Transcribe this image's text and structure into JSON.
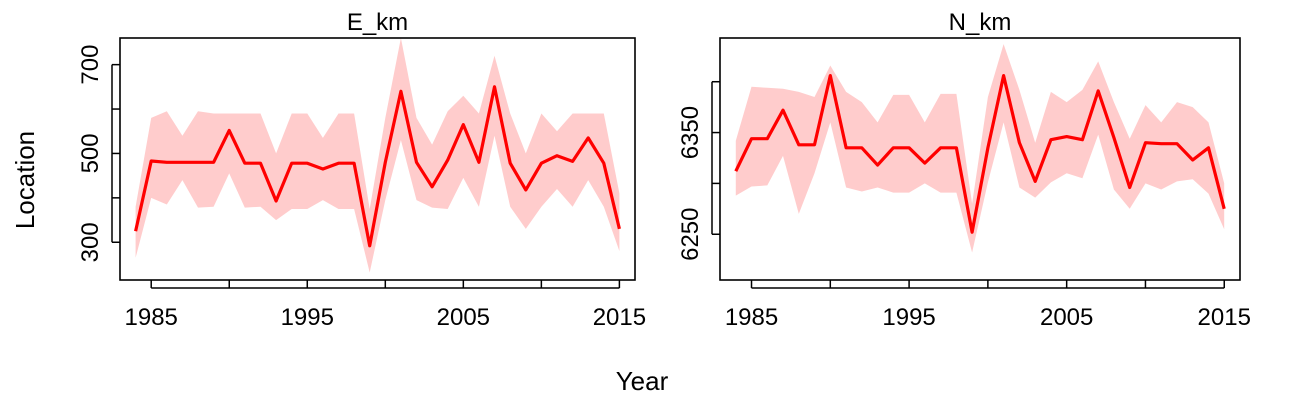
{
  "figure": {
    "xlabel": "Year",
    "ylabel": "Location",
    "line_color": "#ff0000",
    "band_color": "#ffcccc"
  },
  "chart_data": [
    {
      "type": "line",
      "title": "E_km",
      "xlabel": "Year",
      "ylabel": "Location",
      "xlim": [
        1983,
        2016
      ],
      "ylim": [
        215,
        760
      ],
      "xticks": [
        1985,
        1990,
        1995,
        2000,
        2005,
        2010,
        2015
      ],
      "xtick_labels": [
        "1985",
        "",
        "1995",
        "",
        "2005",
        "",
        "2015"
      ],
      "yticks": [
        300,
        400,
        500,
        600,
        700
      ],
      "ytick_labels": [
        "300",
        "",
        "500",
        "",
        "700"
      ],
      "grid": false,
      "legend": "none",
      "x": [
        1984,
        1985,
        1986,
        1987,
        1988,
        1989,
        1990,
        1991,
        1992,
        1993,
        1994,
        1995,
        1996,
        1997,
        1998,
        1999,
        2000,
        2001,
        2002,
        2003,
        2004,
        2005,
        2006,
        2007,
        2008,
        2009,
        2010,
        2011,
        2012,
        2013,
        2014,
        2015
      ],
      "series": [
        {
          "values": [
            325,
            483,
            480,
            480,
            480,
            480,
            552,
            478,
            478,
            393,
            478,
            478,
            465,
            478,
            478,
            292,
            480,
            640,
            480,
            425,
            485,
            565,
            480,
            650,
            478,
            418,
            478,
            495,
            482,
            535,
            478,
            330
          ],
          "lower": [
            265,
            400,
            385,
            440,
            378,
            380,
            455,
            378,
            380,
            350,
            375,
            375,
            395,
            375,
            375,
            232,
            395,
            530,
            395,
            378,
            375,
            445,
            380,
            540,
            380,
            330,
            380,
            420,
            380,
            440,
            380,
            280
          ],
          "upper": [
            380,
            580,
            595,
            540,
            595,
            590,
            590,
            590,
            590,
            500,
            590,
            590,
            535,
            590,
            590,
            375,
            580,
            760,
            580,
            520,
            595,
            630,
            590,
            720,
            590,
            500,
            590,
            550,
            590,
            590,
            590,
            410
          ]
        }
      ]
    },
    {
      "type": "line",
      "title": "N_km",
      "xlabel": "Year",
      "ylabel": "",
      "xlim": [
        1983,
        2016
      ],
      "ylim": [
        6205,
        6443
      ],
      "xticks": [
        1985,
        1990,
        1995,
        2000,
        2005,
        2010,
        2015
      ],
      "xtick_labels": [
        "1985",
        "",
        "1995",
        "",
        "2005",
        "",
        "2015"
      ],
      "yticks": [
        6250,
        6300,
        6350,
        6400
      ],
      "ytick_labels": [
        "6250",
        "",
        "6350",
        ""
      ],
      "grid": false,
      "legend": "none",
      "x": [
        1984,
        1985,
        1986,
        1987,
        1988,
        1989,
        1990,
        1991,
        1992,
        1993,
        1994,
        1995,
        1996,
        1997,
        1998,
        1999,
        2000,
        2001,
        2002,
        2003,
        2004,
        2005,
        2006,
        2007,
        2008,
        2009,
        2010,
        2011,
        2012,
        2013,
        2014,
        2015
      ],
      "series": [
        {
          "values": [
            6312,
            6344,
            6344,
            6372,
            6338,
            6338,
            6406,
            6335,
            6335,
            6318,
            6335,
            6335,
            6320,
            6335,
            6335,
            6252,
            6335,
            6406,
            6340,
            6302,
            6343,
            6346,
            6343,
            6391,
            6345,
            6296,
            6340,
            6339,
            6339,
            6323,
            6335,
            6275
          ],
          "lower": [
            6288,
            6297,
            6298,
            6327,
            6270,
            6310,
            6360,
            6296,
            6292,
            6296,
            6291,
            6291,
            6300,
            6291,
            6291,
            6232,
            6301,
            6360,
            6296,
            6286,
            6301,
            6310,
            6305,
            6348,
            6294,
            6275,
            6300,
            6294,
            6302,
            6304,
            6290,
            6255
          ],
          "upper": [
            6342,
            6395,
            6394,
            6393,
            6390,
            6385,
            6416,
            6390,
            6380,
            6360,
            6387,
            6387,
            6360,
            6388,
            6388,
            6280,
            6385,
            6437,
            6392,
            6340,
            6390,
            6380,
            6392,
            6420,
            6380,
            6344,
            6377,
            6360,
            6380,
            6375,
            6360,
            6300
          ]
        }
      ]
    }
  ]
}
